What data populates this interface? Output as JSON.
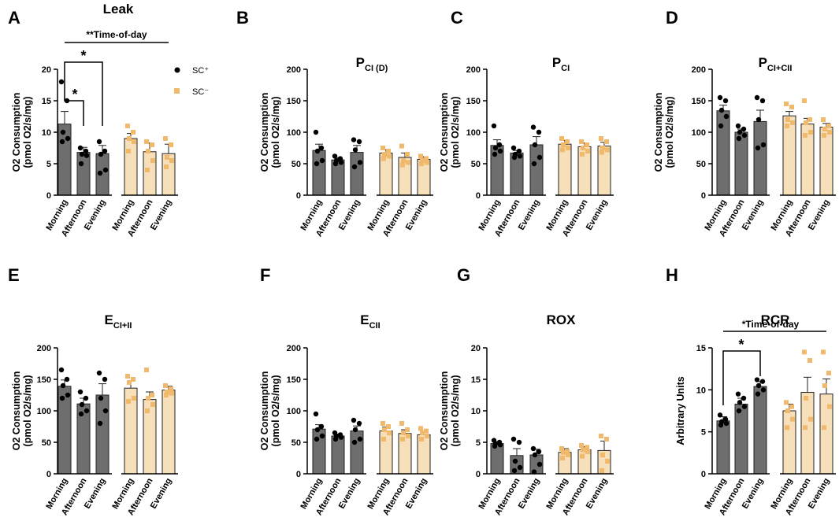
{
  "figure": {
    "legend": {
      "sc_plus": "SC⁺",
      "sc_minus": "SC⁻"
    },
    "colors": {
      "sc_plus": "#6e6e6e",
      "sc_minus": "#f7dfba",
      "sc_minus_point": "#f0b96c",
      "point_dark": "#000000"
    }
  },
  "chart_data": [
    {
      "type": "bar",
      "letter": "A",
      "title": "Leak",
      "subtitle": "",
      "ylabel": "O2 Consumption",
      "ylabel2": "(pmol O2/s/mg)",
      "ylim": [
        0,
        20
      ],
      "yticks": [
        0,
        5,
        10,
        15,
        20
      ],
      "categories": [
        "Morning",
        "Afternoon",
        "Evening"
      ],
      "series": [
        {
          "name": "SC⁺",
          "values": [
            11.3,
            6.8,
            6.6
          ],
          "errors": [
            2.0,
            0.8,
            1.3
          ],
          "points": [
            [
              18,
              15,
              10,
              9,
              8.5
            ],
            [
              7.5,
              7,
              6.5,
              6.3,
              5
            ],
            [
              8.5,
              7,
              6.5,
              4,
              3.5
            ]
          ]
        },
        {
          "name": "SC⁻",
          "values": [
            9.0,
            6.9,
            6.6
          ],
          "errors": [
            0.8,
            1.4,
            1.5
          ],
          "points": [
            [
              11,
              10,
              9,
              8.5,
              7
            ],
            [
              8.5,
              8,
              7,
              5.5,
              4
            ],
            [
              9,
              8,
              6,
              5.5,
              4.5
            ]
          ]
        }
      ],
      "annotations": {
        "time_of_day": "**Time-of-day",
        "star_outer": "*",
        "star_inner": "*"
      }
    },
    {
      "type": "bar",
      "letter": "B",
      "title": "P",
      "subtitle": "CI (D)",
      "ylabel": "O2 Consumption",
      "ylabel2": "(pmol O2/s/mg)",
      "ylim": [
        0,
        200
      ],
      "yticks": [
        0,
        50,
        100,
        150,
        200
      ],
      "categories": [
        "Morning",
        "Afternoon",
        "Evening"
      ],
      "series": [
        {
          "name": "SC⁺",
          "values": [
            71,
            56,
            68
          ],
          "errors": [
            10,
            4,
            11
          ],
          "points": [
            [
              100,
              75,
              70,
              55,
              50
            ],
            [
              62,
              58,
              55,
              52,
              50
            ],
            [
              88,
              85,
              72,
              52,
              45
            ]
          ]
        },
        {
          "name": "SC⁻",
          "values": [
            67,
            60,
            57
          ],
          "errors": [
            5,
            7,
            4
          ],
          "points": [
            [
              75,
              70,
              65,
              62,
              58
            ],
            [
              78,
              65,
              55,
              52,
              48
            ],
            [
              62,
              58,
              55,
              52,
              50
            ]
          ]
        }
      ]
    },
    {
      "type": "bar",
      "letter": "C",
      "title": "P",
      "subtitle": "CI",
      "ylabel": "O2 Consumption",
      "ylabel2": "(pmol O2/s/mg)",
      "ylim": [
        0,
        200
      ],
      "yticks": [
        0,
        50,
        100,
        150,
        200
      ],
      "categories": [
        "Morning",
        "Afternoon",
        "Evening"
      ],
      "series": [
        {
          "name": "SC⁺",
          "values": [
            79,
            67,
            80
          ],
          "errors": [
            9,
            4,
            13
          ],
          "points": [
            [
              110,
              80,
              75,
              70,
              65
            ],
            [
              75,
              70,
              65,
              62,
              60
            ],
            [
              108,
              100,
              80,
              60,
              50
            ]
          ]
        },
        {
          "name": "SC⁻",
          "values": [
            81,
            77,
            78
          ],
          "errors": [
            6,
            6,
            6
          ],
          "points": [
            [
              90,
              85,
              80,
              75,
              72
            ],
            [
              85,
              80,
              75,
              70,
              65
            ],
            [
              90,
              85,
              75,
              72,
              68
            ]
          ]
        }
      ]
    },
    {
      "type": "bar",
      "letter": "D",
      "title": "P",
      "subtitle": "CI+CII",
      "ylabel": "O2 Consumption",
      "ylabel2": "(pmol O2/s/mg)",
      "ylim": [
        0,
        200
      ],
      "yticks": [
        0,
        50,
        100,
        150,
        200
      ],
      "categories": [
        "Morning",
        "Afternoon",
        "Evening"
      ],
      "series": [
        {
          "name": "SC⁺",
          "values": [
            134,
            100,
            117
          ],
          "errors": [
            9,
            5,
            18
          ],
          "points": [
            [
              155,
              150,
              135,
              125,
              110
            ],
            [
              110,
              105,
              100,
              95,
              90
            ],
            [
              155,
              150,
              120,
              80,
              75
            ]
          ]
        },
        {
          "name": "SC⁻",
          "values": [
            126,
            113,
            108
          ],
          "errors": [
            7,
            9,
            6
          ],
          "points": [
            [
              145,
              140,
              120,
              115,
              110
            ],
            [
              150,
              120,
              115,
              100,
              95
            ],
            [
              120,
              110,
              105,
              100,
              95
            ]
          ]
        }
      ]
    },
    {
      "type": "bar",
      "letter": "E",
      "title": "E",
      "subtitle": "CI+II",
      "ylabel": "O2 Consumption",
      "ylabel2": "(pmol O2/s/mg)",
      "ylim": [
        0,
        200
      ],
      "yticks": [
        0,
        50,
        100,
        150,
        200
      ],
      "categories": [
        "Morning",
        "Afternoon",
        "Evening"
      ],
      "series": [
        {
          "name": "SC⁺",
          "values": [
            139,
            111,
            125
          ],
          "errors": [
            10,
            9,
            18
          ],
          "points": [
            [
              165,
              150,
              140,
              125,
              120
            ],
            [
              130,
              120,
              110,
              100,
              95
            ],
            [
              160,
              150,
              120,
              100,
              80
            ]
          ]
        },
        {
          "name": "SC⁻",
          "values": [
            136,
            118,
            133
          ],
          "errors": [
            12,
            12,
            6
          ],
          "points": [
            [
              155,
              150,
              145,
              120,
              115
            ],
            [
              165,
              125,
              120,
              110,
              100
            ],
            [
              140,
              135,
              130,
              128,
              125
            ]
          ]
        }
      ]
    },
    {
      "type": "bar",
      "letter": "F",
      "title": "E",
      "subtitle": "CII",
      "ylabel": "O2 Consumption",
      "ylabel2": "(pmol O2/s/mg)",
      "ylim": [
        0,
        200
      ],
      "yticks": [
        0,
        50,
        100,
        150,
        200
      ],
      "categories": [
        "Morning",
        "Afternoon",
        "Evening"
      ],
      "series": [
        {
          "name": "SC⁺",
          "values": [
            71,
            60,
            68
          ],
          "errors": [
            7,
            3,
            8
          ],
          "points": [
            [
              95,
              75,
              70,
              60,
              55
            ],
            [
              65,
              62,
              60,
              58,
              55
            ],
            [
              85,
              80,
              70,
              55,
              50
            ]
          ]
        },
        {
          "name": "SC⁻",
          "values": [
            68,
            64,
            62
          ],
          "errors": [
            6,
            6,
            5
          ],
          "points": [
            [
              80,
              75,
              70,
              65,
              55
            ],
            [
              80,
              70,
              65,
              60,
              55
            ],
            [
              72,
              68,
              65,
              60,
              55
            ]
          ]
        }
      ]
    },
    {
      "type": "bar",
      "letter": "G",
      "title": "ROX",
      "subtitle": "",
      "ylabel": "O2 Consumption",
      "ylabel2": "(pmol O2/s/mg)",
      "ylim": [
        0,
        20
      ],
      "yticks": [
        0,
        5,
        10,
        15,
        20
      ],
      "categories": [
        "Morning",
        "Afternoon",
        "Evening"
      ],
      "series": [
        {
          "name": "SC⁺",
          "values": [
            4.8,
            2.9,
            3.0
          ],
          "errors": [
            0.3,
            1.1,
            0.9
          ],
          "points": [
            [
              5.3,
              5,
              4.8,
              4.6,
              4.4
            ],
            [
              5.5,
              5,
              2,
              1,
              0.5
            ],
            [
              4,
              3.5,
              3,
              1.5,
              0.3
            ]
          ]
        },
        {
          "name": "SC⁻",
          "values": [
            3.4,
            3.8,
            3.7
          ],
          "errors": [
            0.6,
            0.5,
            1.5
          ],
          "points": [
            [
              4,
              3.6,
              3.4,
              3,
              2.5
            ],
            [
              4.5,
              4.2,
              3.8,
              3.5,
              2.8
            ],
            [
              6,
              5.5,
              3,
              2,
              0.5
            ]
          ]
        }
      ]
    },
    {
      "type": "bar",
      "letter": "H",
      "title": "RCR",
      "subtitle": "",
      "ylabel": "Arbitrary Units",
      "ylabel2": "",
      "ylim": [
        0,
        15
      ],
      "yticks": [
        0,
        5,
        10,
        15
      ],
      "categories": [
        "Morning",
        "Afternoon",
        "Evening"
      ],
      "series": [
        {
          "name": "SC⁺",
          "values": [
            6.3,
            8.3,
            10.4
          ],
          "errors": [
            0.5,
            0.7,
            0.6
          ],
          "points": [
            [
              7,
              6.5,
              6.2,
              6,
              5.8
            ],
            [
              9.5,
              9,
              8.5,
              8,
              7.5
            ],
            [
              11.2,
              11,
              10.5,
              10,
              9.5
            ]
          ]
        },
        {
          "name": "SC⁻",
          "values": [
            7.5,
            9.7,
            9.5
          ],
          "errors": [
            0.8,
            1.8,
            1.8
          ],
          "points": [
            [
              8.5,
              8,
              7.5,
              6.5,
              5.5
            ],
            [
              14.5,
              13.5,
              9,
              6.5,
              5.5
            ],
            [
              14.5,
              12,
              10.5,
              8,
              5.5
            ]
          ]
        }
      ],
      "annotations": {
        "time_of_day": "*Time-of-day",
        "star_inner": "*"
      }
    }
  ]
}
